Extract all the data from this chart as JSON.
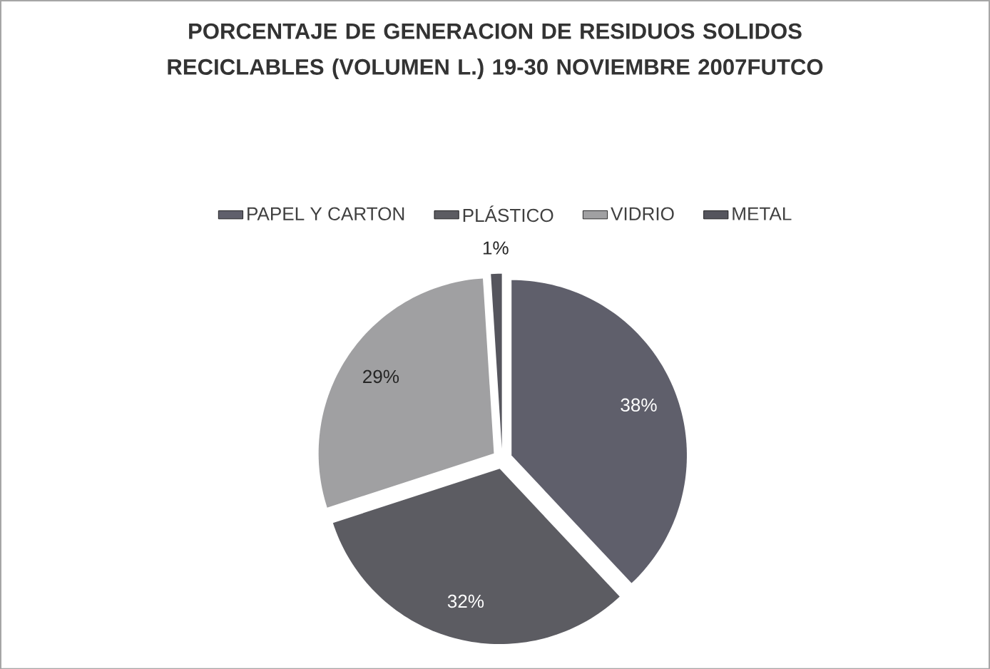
{
  "chart_data": {
    "type": "pie",
    "title": "PORCENTAJE DE GENERACION DE RESIDUOS SOLIDOS RECICLABLES (VOLUMEN L.) 19-30 NOVIEMBRE 2007FUTCO",
    "categories": [
      "PAPEL Y CARTON",
      "PLÁSTICO",
      "VIDRIO",
      "METAL"
    ],
    "values": [
      38,
      32,
      29,
      1
    ],
    "value_labels": [
      "38%",
      "32%",
      "29%",
      "1%"
    ],
    "colors": [
      "#5f5f6b",
      "#5c5c62",
      "#a0a0a2",
      "#55555d"
    ],
    "legend": "top"
  }
}
